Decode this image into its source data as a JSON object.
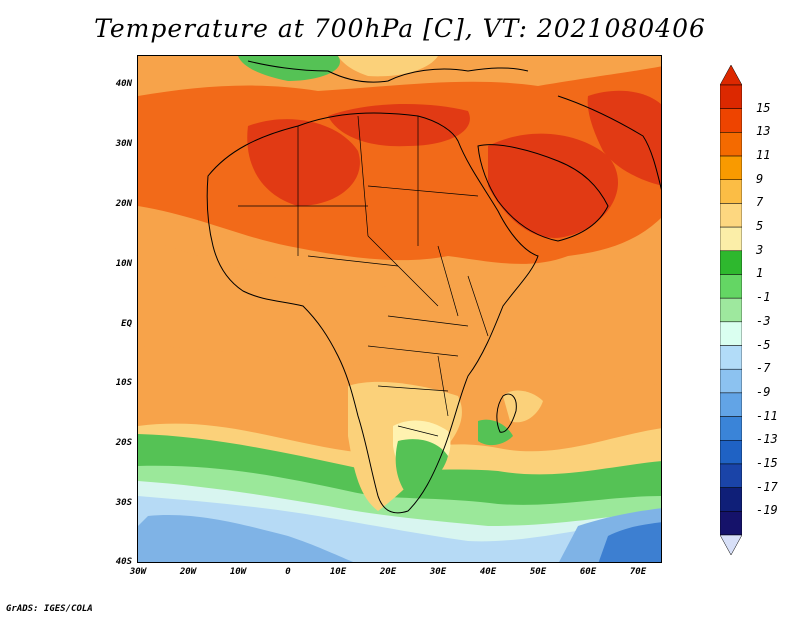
{
  "title": "Temperature at 700hPa [C], VT: 2021080406",
  "credit": "GrADS: IGES/COLA",
  "lat_labels": [
    "40N",
    "30N",
    "20N",
    "10N",
    "EQ",
    "10S",
    "20S",
    "30S",
    "40S"
  ],
  "lon_labels": [
    "30W",
    "20W",
    "10W",
    "0",
    "10E",
    "20E",
    "30E",
    "40E",
    "50E",
    "60E",
    "70E"
  ],
  "colorbar": {
    "labels": [
      "15",
      "13",
      "11",
      "9",
      "7",
      "5",
      "3",
      "1",
      "-1",
      "-3",
      "-5",
      "-7",
      "-9",
      "-11",
      "-13",
      "-15",
      "-17",
      "-19"
    ],
    "colors": [
      "#dc2800",
      "#ee4400",
      "#f46a00",
      "#f99a00",
      "#fbbd45",
      "#fdd780",
      "#fbeea8",
      "#2eb82e",
      "#64d664",
      "#9ee89e",
      "#dafff0",
      "#b2dcf8",
      "#8cc2f0",
      "#62a4e6",
      "#3a84d8",
      "#1f62c4",
      "#1a44a8",
      "#0f1f78",
      "#15126a"
    ]
  },
  "map_colors": {
    "hot": "#e13a14",
    "warm": "#f26a19",
    "mid": "#f7a34a",
    "mild": "#fbd17a",
    "cool": "#fff2b0",
    "green": "#55c255",
    "lightgreen": "#9be89a",
    "cyan": "#d8f5f0",
    "lightblue": "#b6daf5",
    "blue": "#7fb3e6",
    "deepblue": "#3d7fd1"
  }
}
